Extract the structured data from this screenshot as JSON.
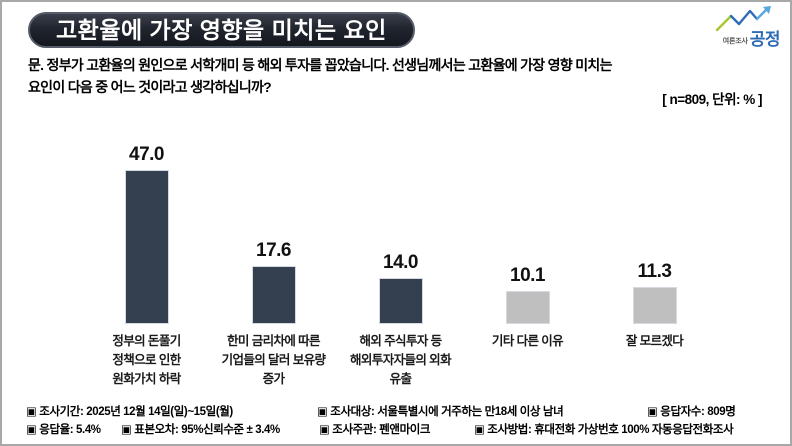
{
  "header": {
    "title": "고환율에 가장 영향을 미치는 요인",
    "logo": {
      "small": "여론조사",
      "big": "공정",
      "blue": "#2e6cb5",
      "light_blue": "#5aa7e0",
      "green": "#a8c72e"
    }
  },
  "question": {
    "line1": "문. 정부가 고환율의 원인으로 서학개미 등 해외 투자를 꼽았습니다. 선생님께서는 고환율에 가장 영향 미치는",
    "line2": "요인이 다음 중 어느 것이라고 생각하십니까?",
    "note": "[ n=809, 단위: % ]"
  },
  "chart_data": {
    "type": "bar",
    "title": "고환율에 가장 영향을 미치는 요인",
    "unit": "%",
    "n": 809,
    "categories": [
      "정부의 돈풀기 정책으로 인한 원화가치 하락",
      "한미 금리차에 따른 기업들의 달러 보유량 증가",
      "해외 주식투자 등 해외투자자들의 외화 유출",
      "기타 다른 이유",
      "잘 모르겠다"
    ],
    "category_lines": [
      [
        "정부의 돈풀기",
        "정책으로 인한",
        "원화가치 하락"
      ],
      [
        "한미 금리차에 따른",
        "기업들의 달러 보유량",
        "증가"
      ],
      [
        "해외 주식투자 등",
        "해외투자자들의 외화",
        "유출"
      ],
      [
        "기타 다른 이유"
      ],
      [
        "잘 모르겠다"
      ]
    ],
    "values": [
      47.0,
      17.6,
      14.0,
      10.1,
      11.3
    ],
    "value_labels": [
      "47.0",
      "17.6",
      "14.0",
      "10.1",
      "11.3"
    ],
    "bar_colors": [
      "#343f4f",
      "#343f4f",
      "#343f4f",
      "#bfbfbf",
      "#bfbfbf"
    ],
    "xlabel": "",
    "ylabel": "",
    "ylim": [
      0,
      55
    ],
    "grid": false,
    "legend": false
  },
  "footer": {
    "row1": [
      "▣ 조사기간: 2025년 12월 14일(일)~15일(월)",
      "▣ 조사대상: 서울특별시에 거주하는 만18세 이상 남녀",
      "▣ 응답자수: 809명"
    ],
    "row2": [
      "▣ 응답율: 5.4%",
      "▣ 표본오차: 95%신뢰수준 ± 3.4%",
      "▣ 조사주관: 펜앤마이크",
      "▣ 조사방법: 휴대전화 가상번호 100% 자동응답전화조사"
    ]
  }
}
